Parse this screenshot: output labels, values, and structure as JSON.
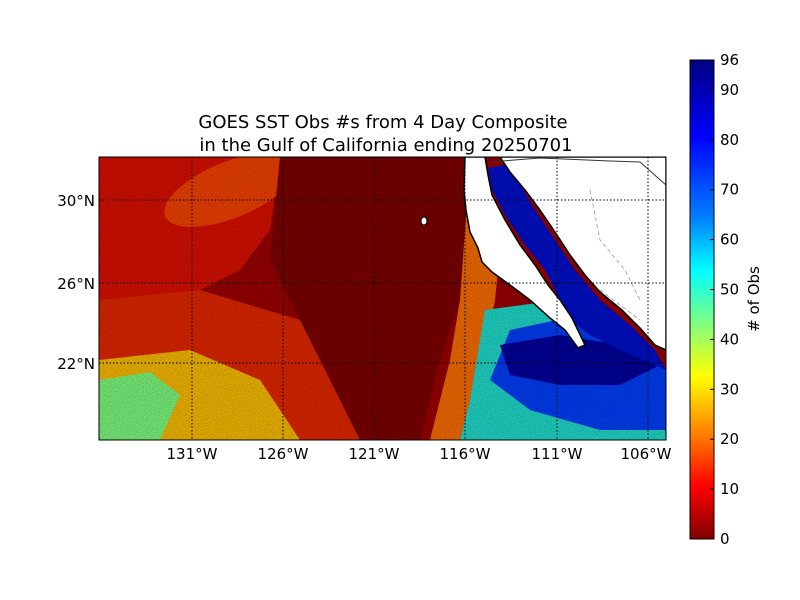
{
  "figure": {
    "title_line1": "GOES SST Obs #s from 4 Day Composite",
    "title_line2": "in the Gulf of California ending 20250701"
  },
  "map": {
    "lat_labels": [
      "30°N",
      "26°N",
      "22°N"
    ],
    "lon_labels": [
      "131°W",
      "126°W",
      "121°W",
      "116°W",
      "111°W",
      "106°W"
    ],
    "grid": true
  },
  "colorbar": {
    "label": "# of Obs",
    "ticks": [
      "0",
      "10",
      "20",
      "30",
      "40",
      "50",
      "60",
      "70",
      "80",
      "90",
      "96"
    ],
    "min": 0,
    "max": 96,
    "colormap": "jet-reversed"
  },
  "colors": {
    "land": "#ffffff",
    "coast": "#000000",
    "low": "#800000",
    "high": "#000080"
  }
}
